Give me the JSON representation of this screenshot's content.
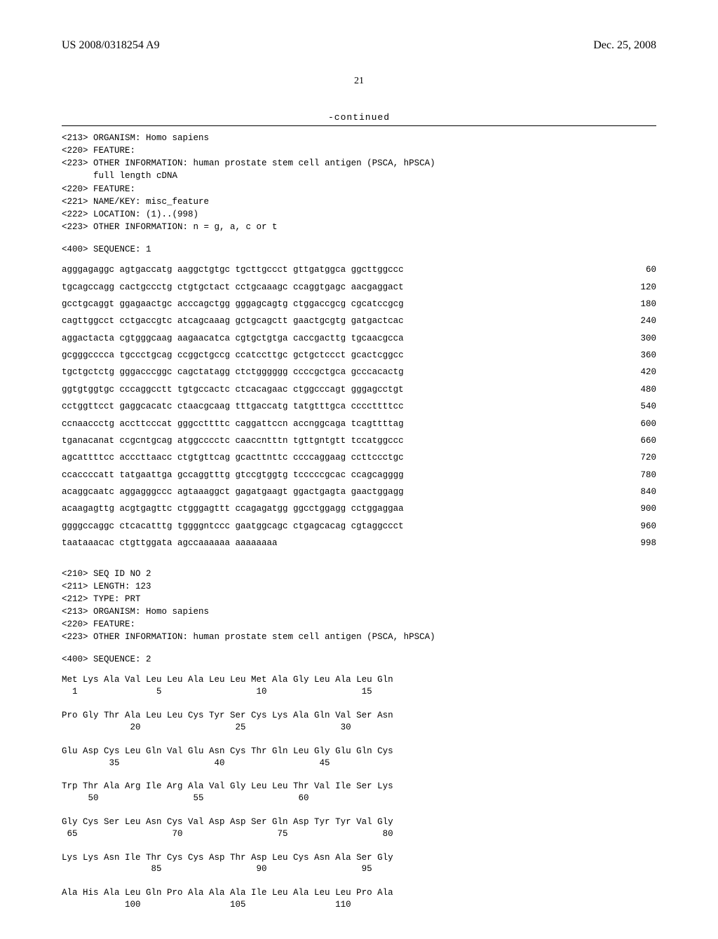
{
  "header": {
    "left": "US 2008/0318254 A9",
    "right": "Dec. 25, 2008"
  },
  "page_number": "21",
  "continued": "-continued",
  "meta_block1": "<213> ORGANISM: Homo sapiens\n<220> FEATURE:\n<223> OTHER INFORMATION: human prostate stem cell antigen (PSCA, hPSCA)\n      full length cDNA\n<220> FEATURE:\n<221> NAME/KEY: misc_feature\n<222> LOCATION: (1)..(998)\n<223> OTHER INFORMATION: n = g, a, c or t",
  "seq1_label": "<400> SEQUENCE: 1",
  "seq1_rows": [
    {
      "groups": "agggagaggc agtgaccatg aaggctgtgc tgcttgccct gttgatggca ggcttggccc",
      "pos": "60"
    },
    {
      "groups": "tgcagccagg cactgccctg ctgtgctact cctgcaaagc ccaggtgagc aacgaggact",
      "pos": "120"
    },
    {
      "groups": "gcctgcaggt ggagaactgc acccagctgg gggagcagtg ctggaccgcg cgcatccgcg",
      "pos": "180"
    },
    {
      "groups": "cagttggcct cctgaccgtc atcagcaaag gctgcagctt gaactgcgtg gatgactcac",
      "pos": "240"
    },
    {
      "groups": "aggactacta cgtgggcaag aagaacatca cgtgctgtga caccgacttg tgcaacgcca",
      "pos": "300"
    },
    {
      "groups": "gcgggcccca tgccctgcag ccggctgccg ccatccttgc gctgctccct gcactcggcc",
      "pos": "360"
    },
    {
      "groups": "tgctgctctg gggacccggc cagctatagg ctctgggggg ccccgctgca gcccacactg",
      "pos": "420"
    },
    {
      "groups": "ggtgtggtgc cccaggcctt tgtgccactc ctcacagaac ctggcccagt gggagcctgt",
      "pos": "480"
    },
    {
      "groups": "cctggttcct gaggcacatc ctaacgcaag tttgaccatg tatgtttgca ccccttttcc",
      "pos": "540"
    },
    {
      "groups": "ccnaaccctg accttcccat gggccttttc caggattccn accnggcaga tcagttttag",
      "pos": "600"
    },
    {
      "groups": "tganacanat ccgcntgcag atggcccctc caaccntttn tgttgntgtt tccatggccc",
      "pos": "660"
    },
    {
      "groups": "agcattttcc acccttaacc ctgtgttcag gcacttnttc ccccaggaag ccttccctgc",
      "pos": "720"
    },
    {
      "groups": "ccaccccatt tatgaattga gccaggtttg gtccgtggtg tcccccgcac ccagcagggg",
      "pos": "780"
    },
    {
      "groups": "acaggcaatc aggagggccc agtaaaggct gagatgaagt ggactgagta gaactggagg",
      "pos": "840"
    },
    {
      "groups": "acaagagttg acgtgagttc ctgggagttt ccagagatgg ggcctggagg cctggaggaa",
      "pos": "900"
    },
    {
      "groups": "ggggccaggc ctcacatttg tggggntccc gaatggcagc ctgagcacag cgtaggccct",
      "pos": "960"
    },
    {
      "groups": "taataaacac ctgttggata agccaaaaaa aaaaaaaa",
      "pos": "998"
    }
  ],
  "meta_block2": "<210> SEQ ID NO 2\n<211> LENGTH: 123\n<212> TYPE: PRT\n<213> ORGANISM: Homo sapiens\n<220> FEATURE:\n<223> OTHER INFORMATION: human prostate stem cell antigen (PSCA, hPSCA)",
  "seq2_label": "<400> SEQUENCE: 2",
  "protein_rows": [
    "Met Lys Ala Val Leu Leu Ala Leu Leu Met Ala Gly Leu Ala Leu Gln",
    "  1               5                  10                  15",
    "",
    "Pro Gly Thr Ala Leu Leu Cys Tyr Ser Cys Lys Ala Gln Val Ser Asn",
    "             20                  25                  30",
    "",
    "Glu Asp Cys Leu Gln Val Glu Asn Cys Thr Gln Leu Gly Glu Gln Cys",
    "         35                  40                  45",
    "",
    "Trp Thr Ala Arg Ile Arg Ala Val Gly Leu Leu Thr Val Ile Ser Lys",
    "     50                  55                  60",
    "",
    "Gly Cys Ser Leu Asn Cys Val Asp Asp Ser Gln Asp Tyr Tyr Val Gly",
    " 65                  70                  75                  80",
    "",
    "Lys Lys Asn Ile Thr Cys Cys Asp Thr Asp Leu Cys Asn Ala Ser Gly",
    "                 85                  90                  95",
    "",
    "Ala His Ala Leu Gln Pro Ala Ala Ala Ile Leu Ala Leu Leu Pro Ala",
    "            100                 105                 110"
  ]
}
